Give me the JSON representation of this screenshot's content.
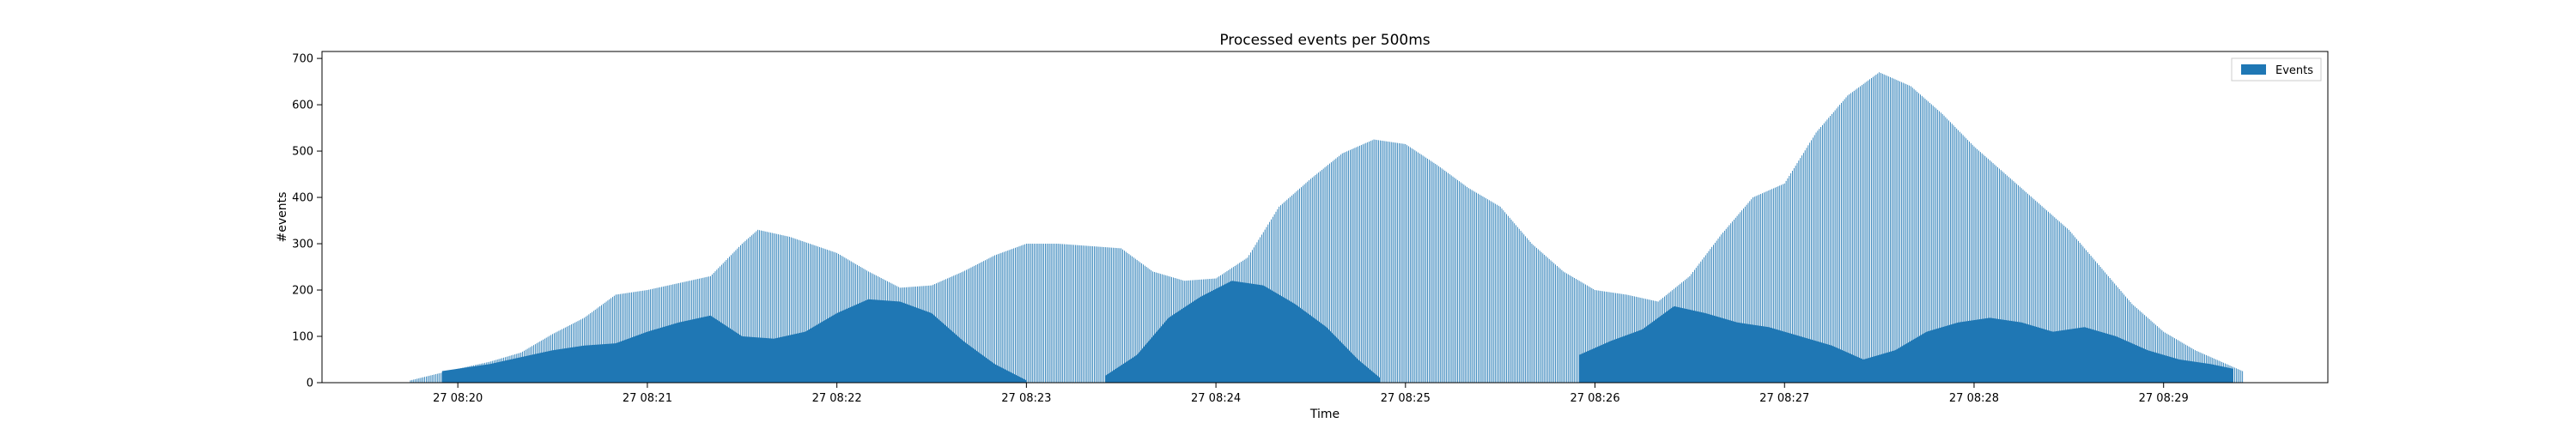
{
  "chart_data": {
    "type": "bar",
    "title": "Processed events per 500ms",
    "xlabel": "Time",
    "ylabel": "#events",
    "ylim": [
      0,
      715
    ],
    "xlim": [
      "27 08:19:17",
      "27 08:29:52"
    ],
    "yticks": [
      0,
      100,
      200,
      300,
      400,
      500,
      600,
      700
    ],
    "xticks": [
      {
        "t": "27 08:20:00",
        "label": "27 08:20"
      },
      {
        "t": "27 08:21:00",
        "label": "27 08:21"
      },
      {
        "t": "27 08:22:00",
        "label": "27 08:22"
      },
      {
        "t": "27 08:23:00",
        "label": "27 08:23"
      },
      {
        "t": "27 08:24:00",
        "label": "27 08:24"
      },
      {
        "t": "27 08:25:00",
        "label": "27 08:25"
      },
      {
        "t": "27 08:26:00",
        "label": "27 08:26"
      },
      {
        "t": "27 08:27:00",
        "label": "27 08:27"
      },
      {
        "t": "27 08:28:00",
        "label": "27 08:28"
      },
      {
        "t": "27 08:29:00",
        "label": "27 08:29"
      }
    ],
    "grid": false,
    "legend": {
      "placement": "top-right",
      "entries": [
        "Events"
      ]
    },
    "bar_color": "#1f77b4",
    "series": [
      {
        "name": "Events",
        "points": [
          [
            "27 08:19:45",
            5
          ],
          [
            "27 08:20:00",
            30
          ],
          [
            "27 08:20:10",
            45
          ],
          [
            "27 08:20:20",
            65
          ],
          [
            "27 08:20:30",
            105
          ],
          [
            "27 08:20:40",
            140
          ],
          [
            "27 08:20:50",
            190
          ],
          [
            "27 08:21:00",
            200
          ],
          [
            "27 08:21:10",
            215
          ],
          [
            "27 08:21:20",
            230
          ],
          [
            "27 08:21:30",
            300
          ],
          [
            "27 08:21:35",
            330
          ],
          [
            "27 08:21:45",
            315
          ],
          [
            "27 08:22:00",
            280
          ],
          [
            "27 08:22:10",
            240
          ],
          [
            "27 08:22:20",
            205
          ],
          [
            "27 08:22:30",
            210
          ],
          [
            "27 08:22:40",
            240
          ],
          [
            "27 08:22:50",
            275
          ],
          [
            "27 08:23:00",
            300
          ],
          [
            "27 08:23:10",
            300
          ],
          [
            "27 08:23:20",
            295
          ],
          [
            "27 08:23:30",
            290
          ],
          [
            "27 08:23:40",
            240
          ],
          [
            "27 08:23:50",
            220
          ],
          [
            "27 08:24:00",
            225
          ],
          [
            "27 08:24:10",
            270
          ],
          [
            "27 08:24:20",
            380
          ],
          [
            "27 08:24:30",
            440
          ],
          [
            "27 08:24:40",
            495
          ],
          [
            "27 08:24:50",
            525
          ],
          [
            "27 08:25:00",
            515
          ],
          [
            "27 08:25:10",
            470
          ],
          [
            "27 08:25:20",
            420
          ],
          [
            "27 08:25:30",
            380
          ],
          [
            "27 08:25:40",
            300
          ],
          [
            "27 08:25:50",
            240
          ],
          [
            "27 08:26:00",
            200
          ],
          [
            "27 08:26:10",
            190
          ],
          [
            "27 08:26:20",
            175
          ],
          [
            "27 08:26:30",
            230
          ],
          [
            "27 08:26:40",
            320
          ],
          [
            "27 08:26:50",
            400
          ],
          [
            "27 08:27:00",
            430
          ],
          [
            "27 08:27:10",
            540
          ],
          [
            "27 08:27:20",
            620
          ],
          [
            "27 08:27:30",
            670
          ],
          [
            "27 08:27:40",
            640
          ],
          [
            "27 08:27:50",
            580
          ],
          [
            "27 08:28:00",
            510
          ],
          [
            "27 08:28:10",
            450
          ],
          [
            "27 08:28:20",
            390
          ],
          [
            "27 08:28:30",
            330
          ],
          [
            "27 08:28:40",
            250
          ],
          [
            "27 08:28:50",
            170
          ],
          [
            "27 08:29:00",
            110
          ],
          [
            "27 08:29:10",
            70
          ],
          [
            "27 08:29:20",
            40
          ],
          [
            "27 08:29:25",
            25
          ]
        ],
        "filled_bands": [
          [
            [
              "27 08:19:55",
              25
            ],
            [
              "27 08:20:10",
              40
            ],
            [
              "27 08:20:20",
              55
            ],
            [
              "27 08:20:30",
              70
            ],
            [
              "27 08:20:40",
              80
            ],
            [
              "27 08:20:50",
              85
            ],
            [
              "27 08:21:00",
              110
            ],
            [
              "27 08:21:10",
              130
            ],
            [
              "27 08:21:20",
              145
            ],
            [
              "27 08:21:30",
              100
            ],
            [
              "27 08:21:40",
              95
            ],
            [
              "27 08:21:50",
              110
            ],
            [
              "27 08:22:00",
              150
            ],
            [
              "27 08:22:10",
              180
            ],
            [
              "27 08:22:20",
              175
            ],
            [
              "27 08:22:30",
              150
            ],
            [
              "27 08:22:40",
              90
            ],
            [
              "27 08:22:50",
              40
            ],
            [
              "27 08:23:00",
              5
            ]
          ],
          [
            [
              "27 08:23:25",
              15
            ],
            [
              "27 08:23:35",
              60
            ],
            [
              "27 08:23:45",
              140
            ],
            [
              "27 08:23:55",
              185
            ],
            [
              "27 08:24:05",
              220
            ],
            [
              "27 08:24:15",
              210
            ],
            [
              "27 08:24:25",
              170
            ],
            [
              "27 08:24:35",
              120
            ],
            [
              "27 08:24:45",
              50
            ],
            [
              "27 08:24:52",
              10
            ]
          ],
          [
            [
              "27 08:25:55",
              60
            ],
            [
              "27 08:26:05",
              90
            ],
            [
              "27 08:26:15",
              115
            ],
            [
              "27 08:26:25",
              165
            ],
            [
              "27 08:26:35",
              150
            ],
            [
              "27 08:26:45",
              130
            ],
            [
              "27 08:26:55",
              120
            ],
            [
              "27 08:27:05",
              100
            ],
            [
              "27 08:27:15",
              80
            ],
            [
              "27 08:27:25",
              50
            ],
            [
              "27 08:27:35",
              70
            ],
            [
              "27 08:27:45",
              110
            ],
            [
              "27 08:27:55",
              130
            ],
            [
              "27 08:28:05",
              140
            ],
            [
              "27 08:28:15",
              130
            ],
            [
              "27 08:28:25",
              110
            ],
            [
              "27 08:28:35",
              120
            ],
            [
              "27 08:28:45",
              100
            ],
            [
              "27 08:28:55",
              70
            ],
            [
              "27 08:29:05",
              50
            ],
            [
              "27 08:29:15",
              40
            ],
            [
              "27 08:29:22",
              30
            ]
          ]
        ]
      }
    ]
  }
}
